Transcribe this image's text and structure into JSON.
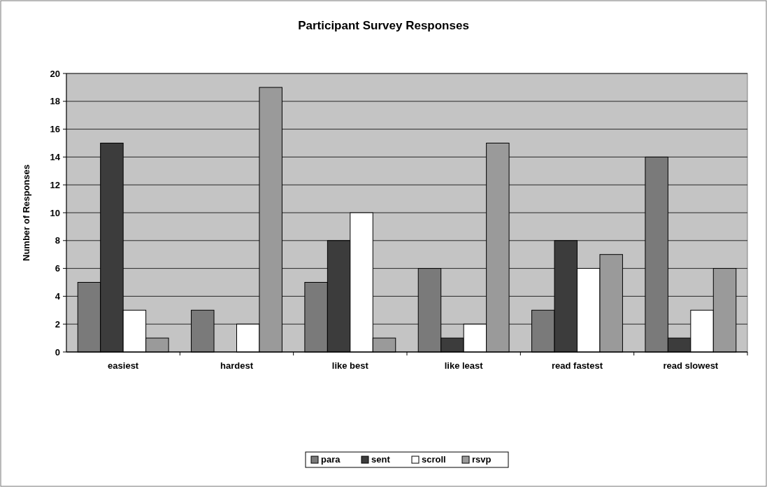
{
  "chart_data": {
    "type": "bar",
    "title": "Participant Survey Responses",
    "ylabel": "Number of Responses",
    "categories": [
      "easiest",
      "hardest",
      "like best",
      "like least",
      "read fastest",
      "read slowest"
    ],
    "series": [
      {
        "name": "para",
        "color": "#7a7a7a",
        "values": [
          5,
          3,
          5,
          6,
          3,
          14
        ]
      },
      {
        "name": "sent",
        "color": "#3c3c3c",
        "values": [
          15,
          0,
          8,
          1,
          8,
          1
        ]
      },
      {
        "name": "scroll",
        "color": "#ffffff",
        "values": [
          3,
          2,
          10,
          2,
          6,
          3
        ]
      },
      {
        "name": "rsvp",
        "color": "#9a9a9a",
        "values": [
          1,
          19,
          1,
          15,
          7,
          6
        ]
      }
    ],
    "ylim": [
      0,
      20
    ],
    "yticks": [
      0,
      2,
      4,
      6,
      8,
      10,
      12,
      14,
      16,
      18,
      20
    ],
    "grid": "y",
    "legend": "bottom"
  }
}
